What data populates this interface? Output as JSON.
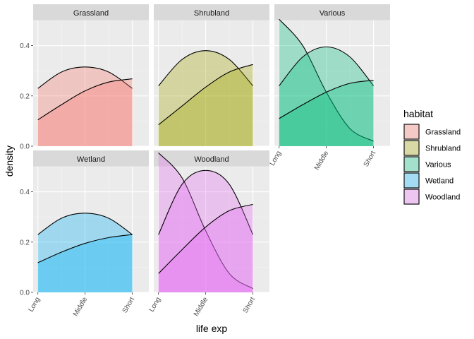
{
  "chart_data": {
    "type": "area",
    "subtype": "faceted density plot",
    "xlabel": "life exp",
    "ylabel": "density",
    "categories": [
      "Long",
      "Middle",
      "Short"
    ],
    "ylim": [
      0,
      0.5
    ],
    "y_ticks": [
      0.0,
      0.2,
      0.4
    ],
    "y_tick_labels": [
      "0.0",
      "0.2",
      "0.4"
    ],
    "legend": {
      "title": "habitat",
      "position": "right"
    },
    "grid": true,
    "facets": [
      {
        "name": "Grassland",
        "color": "#F8766D",
        "curves": [
          {
            "x": [
              1,
              1.5,
              2,
              2.5,
              3
            ],
            "y": [
              0.23,
              0.295,
              0.315,
              0.295,
              0.23
            ]
          },
          {
            "x": [
              1,
              1.5,
              2,
              2.5,
              3
            ],
            "y": [
              0.105,
              0.165,
              0.22,
              0.255,
              0.268
            ]
          }
        ]
      },
      {
        "name": "Shrubland",
        "color": "#A3A500",
        "curves": [
          {
            "x": [
              1,
              1.5,
              2,
              2.5,
              3
            ],
            "y": [
              0.24,
              0.345,
              0.38,
              0.345,
              0.24
            ]
          },
          {
            "x": [
              1,
              1.5,
              2,
              2.5,
              3
            ],
            "y": [
              0.085,
              0.16,
              0.235,
              0.295,
              0.325
            ]
          }
        ]
      },
      {
        "name": "Various",
        "color": "#00BF7D",
        "curves": [
          {
            "x": [
              1,
              1.5,
              2,
              2.5,
              3
            ],
            "y": [
              0.505,
              0.4,
              0.215,
              0.07,
              0.02
            ]
          },
          {
            "x": [
              1,
              1.5,
              2,
              2.5,
              3
            ],
            "y": [
              0.24,
              0.355,
              0.395,
              0.355,
              0.24
            ]
          },
          {
            "x": [
              1,
              1.5,
              2,
              2.5,
              3
            ],
            "y": [
              0.11,
              0.165,
              0.215,
              0.25,
              0.262
            ]
          }
        ]
      },
      {
        "name": "Wetland",
        "color": "#00B0F6",
        "curves": [
          {
            "x": [
              1,
              1.5,
              2,
              2.5,
              3
            ],
            "y": [
              0.23,
              0.295,
              0.315,
              0.295,
              0.23
            ]
          },
          {
            "x": [
              1,
              1.5,
              2,
              2.5,
              3
            ],
            "y": [
              0.118,
              0.16,
              0.195,
              0.218,
              0.23
            ]
          }
        ]
      },
      {
        "name": "Woodland",
        "color": "#E76BF3",
        "curves": [
          {
            "x": [
              1,
              1.5,
              2,
              2.5,
              3
            ],
            "y": [
              0.555,
              0.455,
              0.245,
              0.075,
              0.015
            ]
          },
          {
            "x": [
              1,
              1.5,
              2,
              2.5,
              3
            ],
            "y": [
              0.23,
              0.43,
              0.485,
              0.43,
              0.23
            ]
          },
          {
            "x": [
              1,
              1.5,
              2,
              2.5,
              3
            ],
            "y": [
              0.075,
              0.17,
              0.26,
              0.325,
              0.35
            ]
          }
        ]
      }
    ]
  },
  "legend_items": [
    {
      "label": "Grassland",
      "color": "#F8766D"
    },
    {
      "label": "Shrubland",
      "color": "#A3A500"
    },
    {
      "label": "Various",
      "color": "#00BF7D"
    },
    {
      "label": "Wetland",
      "color": "#00B0F6"
    },
    {
      "label": "Woodland",
      "color": "#E76BF3"
    }
  ]
}
